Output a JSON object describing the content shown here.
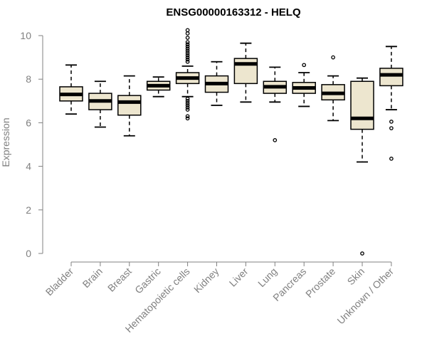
{
  "chart_data": {
    "type": "boxplot",
    "title": "ENSG00000163312 - HELQ",
    "ylabel": "Expression",
    "xlabel": "",
    "ylim": [
      0,
      10
    ],
    "yticks": [
      0,
      2,
      4,
      6,
      8,
      10
    ],
    "box_fill": "#ede6cf",
    "line_color": "#000000",
    "axis_color": "#808080",
    "categories": [
      "Bladder",
      "Brain",
      "Breast",
      "Gastric",
      "Hematopoietic cells",
      "Kidney",
      "Liver",
      "Lung",
      "Pancreas",
      "Prostate",
      "Skin",
      "Unknown / Other"
    ],
    "boxes": [
      {
        "category": "Bladder",
        "whisker_low": 6.4,
        "q1": 7.0,
        "median": 7.3,
        "q3": 7.65,
        "whisker_high": 8.65,
        "outliers": []
      },
      {
        "category": "Brain",
        "whisker_low": 5.8,
        "q1": 6.6,
        "median": 7.0,
        "q3": 7.35,
        "whisker_high": 7.9,
        "outliers": []
      },
      {
        "category": "Breast",
        "whisker_low": 5.4,
        "q1": 6.35,
        "median": 6.95,
        "q3": 7.25,
        "whisker_high": 8.15,
        "outliers": []
      },
      {
        "category": "Gastric",
        "whisker_low": 7.2,
        "q1": 7.5,
        "median": 7.7,
        "q3": 7.9,
        "whisker_high": 8.1,
        "outliers": []
      },
      {
        "category": "Hematopoietic cells",
        "whisker_low": 7.2,
        "q1": 7.8,
        "median": 8.05,
        "q3": 8.3,
        "whisker_high": 8.6,
        "outliers": [
          10.25,
          10.1,
          9.9,
          9.7,
          9.6,
          9.5,
          9.4,
          9.3,
          9.2,
          9.1,
          9.0,
          8.9,
          8.8,
          7.1,
          7.0,
          6.9,
          6.8,
          6.7,
          6.6,
          6.3,
          6.2
        ]
      },
      {
        "category": "Kidney",
        "whisker_low": 6.8,
        "q1": 7.4,
        "median": 7.8,
        "q3": 8.15,
        "whisker_high": 8.8,
        "outliers": []
      },
      {
        "category": "Liver",
        "whisker_low": 6.95,
        "q1": 7.8,
        "median": 8.7,
        "q3": 8.95,
        "whisker_high": 9.65,
        "outliers": []
      },
      {
        "category": "Lung",
        "whisker_low": 6.95,
        "q1": 7.35,
        "median": 7.65,
        "q3": 7.9,
        "whisker_high": 8.55,
        "outliers": [
          5.2
        ]
      },
      {
        "category": "Pancreas",
        "whisker_low": 6.75,
        "q1": 7.35,
        "median": 7.6,
        "q3": 7.85,
        "whisker_high": 8.3,
        "outliers": [
          8.65
        ]
      },
      {
        "category": "Prostate",
        "whisker_low": 6.1,
        "q1": 7.05,
        "median": 7.35,
        "q3": 7.75,
        "whisker_high": 8.15,
        "outliers": [
          9.0
        ]
      },
      {
        "category": "Skin",
        "whisker_low": 4.2,
        "q1": 5.7,
        "median": 6.2,
        "q3": 7.9,
        "whisker_high": 8.05,
        "outliers": [
          0.0
        ]
      },
      {
        "category": "Unknown / Other",
        "whisker_low": 6.6,
        "q1": 7.7,
        "median": 8.2,
        "q3": 8.5,
        "whisker_high": 9.5,
        "outliers": [
          6.05,
          5.75,
          4.35
        ]
      }
    ]
  }
}
